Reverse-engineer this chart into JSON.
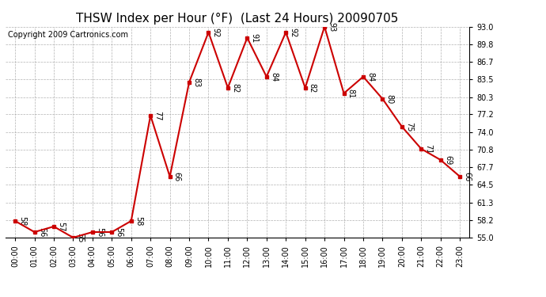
{
  "title": "THSW Index per Hour (°F)  (Last 24 Hours) 20090705",
  "copyright": "Copyright 2009 Cartronics.com",
  "hours": [
    "00:00",
    "01:00",
    "02:00",
    "03:00",
    "04:00",
    "05:00",
    "06:00",
    "07:00",
    "08:00",
    "09:00",
    "10:00",
    "11:00",
    "12:00",
    "13:00",
    "14:00",
    "15:00",
    "16:00",
    "17:00",
    "18:00",
    "19:00",
    "20:00",
    "21:00",
    "22:00",
    "23:00"
  ],
  "plot_values": [
    58,
    56,
    57,
    55,
    56,
    56,
    58,
    77,
    66,
    83,
    92,
    82,
    91,
    84,
    92,
    82,
    93,
    81,
    84,
    80,
    75,
    71,
    69,
    66
  ],
  "ylim_min": 55.0,
  "ylim_max": 93.0,
  "yticks": [
    55.0,
    58.2,
    61.3,
    64.5,
    67.7,
    70.8,
    74.0,
    77.2,
    80.3,
    83.5,
    86.7,
    89.8,
    93.0
  ],
  "line_color": "#cc0000",
  "marker_color": "#cc0000",
  "bg_color": "#ffffff",
  "grid_color": "#aaaaaa",
  "title_fontsize": 11,
  "tick_fontsize": 7,
  "annotation_fontsize": 7,
  "copyright_fontsize": 7
}
